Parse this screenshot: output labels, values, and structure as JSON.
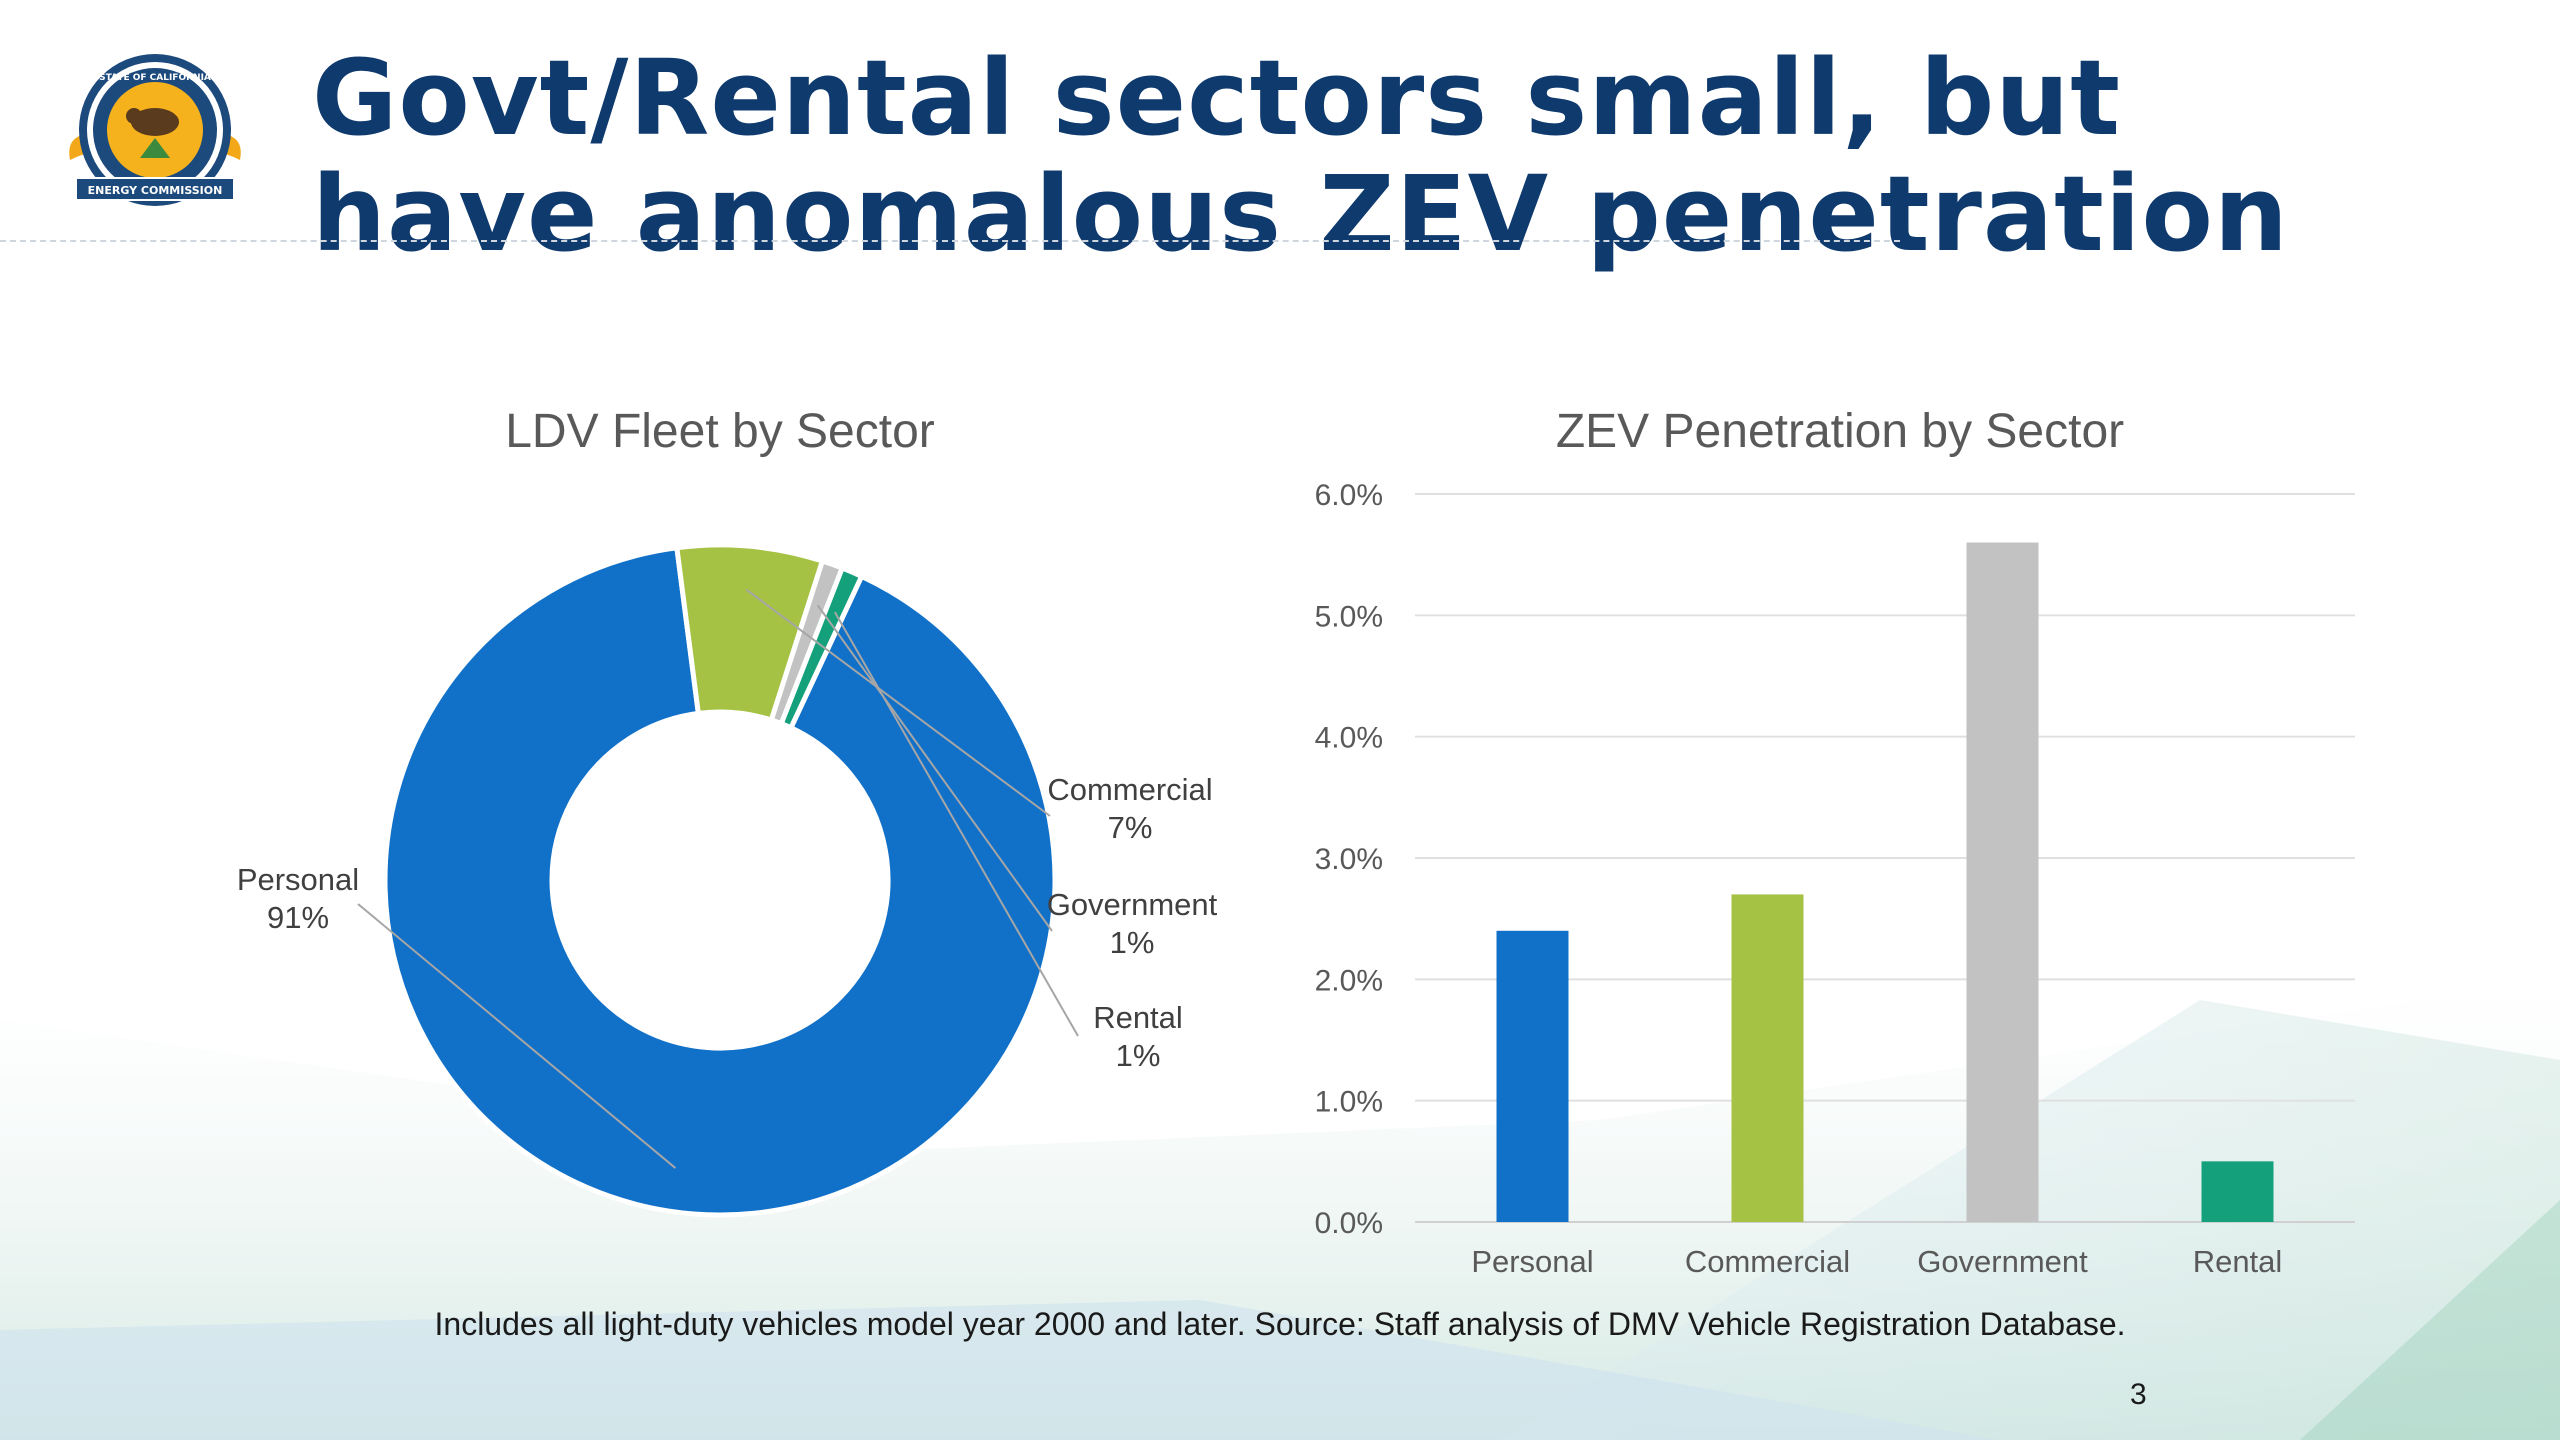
{
  "slide": {
    "title_line1": "Govt/Rental sectors small, but",
    "title_line2": "have anomalous ZEV penetration",
    "logo_text_top": "STATE OF CALIFORNIA",
    "logo_text_bottom": "ENERGY COMMISSION",
    "footnote": "Includes all light-duty vehicles model year 2000 and later. Source: Staff analysis of DMV Vehicle Registration Database.",
    "page_number": "3"
  },
  "chart_data": [
    {
      "type": "pie",
      "variant": "donut",
      "title": "LDV Fleet by Sector",
      "categories": [
        "Personal",
        "Commercial",
        "Government",
        "Rental"
      ],
      "values": [
        91,
        7,
        1,
        1
      ],
      "value_labels": [
        "91%",
        "7%",
        "1%",
        "1%"
      ],
      "colors": [
        "#1170c8",
        "#a6c244",
        "#c2c2c2",
        "#14a07a"
      ]
    },
    {
      "type": "bar",
      "title": "ZEV Penetration by Sector",
      "categories": [
        "Personal",
        "Commercial",
        "Government",
        "Rental"
      ],
      "values": [
        2.4,
        2.7,
        5.6,
        0.5
      ],
      "unit": "%",
      "ylim": [
        0,
        6
      ],
      "yticks": [
        "0.0%",
        "1.0%",
        "2.0%",
        "3.0%",
        "4.0%",
        "5.0%",
        "6.0%"
      ],
      "grid": true,
      "colors": [
        "#1170c8",
        "#a6c244",
        "#c2c2c2",
        "#14a07a"
      ]
    }
  ]
}
